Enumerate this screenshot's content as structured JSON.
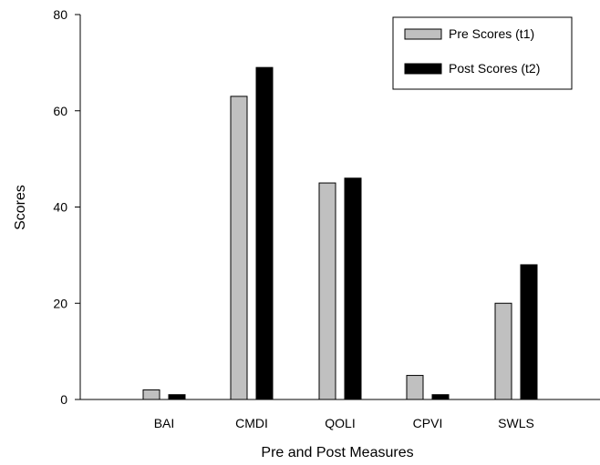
{
  "chart_data": {
    "type": "bar",
    "title": "",
    "xlabel": "Pre and Post Measures",
    "ylabel": "Scores",
    "categories": [
      "BAI",
      "CMDI",
      "QOLI",
      "CPVI",
      "SWLS"
    ],
    "series": [
      {
        "name": "Pre Scores (t1)",
        "values": [
          2,
          63,
          45,
          5,
          20
        ],
        "color": "#c0c0c0"
      },
      {
        "name": "Post Scores (t2)",
        "values": [
          1,
          69,
          46,
          1,
          28
        ],
        "color": "#000000"
      }
    ],
    "ylim": [
      0,
      80
    ],
    "yticks": [
      0,
      20,
      40,
      60,
      80
    ],
    "grid": false,
    "legend_position": "top-right"
  }
}
